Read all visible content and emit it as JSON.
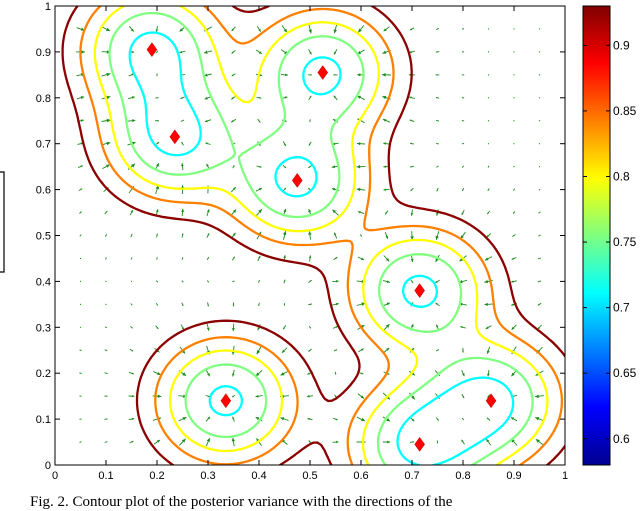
{
  "chart_data": {
    "type": "contour",
    "title": "",
    "xlabel": "",
    "ylabel": "",
    "xlim": [
      0,
      1
    ],
    "ylim": [
      0,
      1
    ],
    "x_ticks": [
      "0",
      "0.1",
      "0.2",
      "0.3",
      "0.4",
      "0.5",
      "0.6",
      "0.7",
      "0.8",
      "0.9",
      "1"
    ],
    "y_ticks": [
      "0",
      "0.1",
      "0.2",
      "0.3",
      "0.4",
      "0.5",
      "0.6",
      "0.7",
      "0.8",
      "0.9",
      "1"
    ],
    "grid": false,
    "colorbar": {
      "range": [
        0.58,
        0.93
      ],
      "ticks": [
        "0.6",
        "0.65",
        "0.7",
        "0.75",
        "0.8",
        "0.85",
        "0.9"
      ],
      "colormap": "jet"
    },
    "contour_levels": [
      0.6,
      0.65,
      0.7,
      0.75,
      0.8,
      0.85,
      0.9
    ],
    "contour_colors": [
      "#00008f",
      "#0080ff",
      "#00ffff",
      "#80ff80",
      "#ffff00",
      "#ff8000",
      "#8b0000"
    ],
    "markers": {
      "symbol": "diamond",
      "color": "#ff0000",
      "points": [
        {
          "x": 0.19,
          "y": 0.905
        },
        {
          "x": 0.235,
          "y": 0.715
        },
        {
          "x": 0.525,
          "y": 0.855
        },
        {
          "x": 0.475,
          "y": 0.62
        },
        {
          "x": 0.715,
          "y": 0.38
        },
        {
          "x": 0.335,
          "y": 0.14
        },
        {
          "x": 0.855,
          "y": 0.14
        },
        {
          "x": 0.715,
          "y": 0.045
        }
      ]
    },
    "quiver": {
      "color": "#1a8c1a",
      "grid_step": 0.05
    }
  },
  "caption": {
    "text": "Fig. 2.   Contour plot of the posterior variance with the directions of the"
  }
}
